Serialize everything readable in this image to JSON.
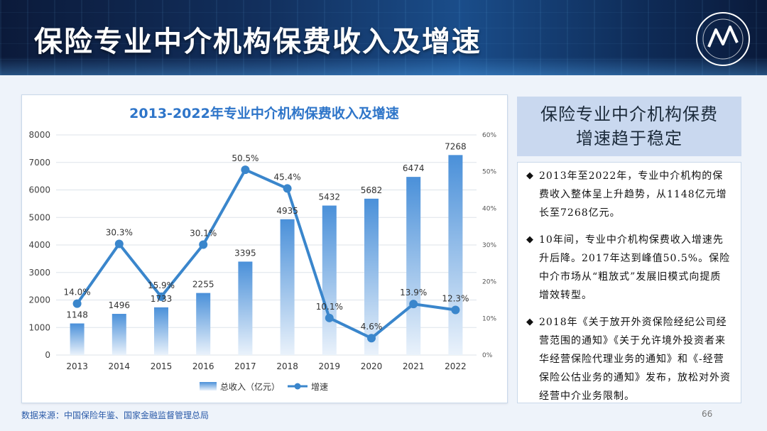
{
  "header": {
    "title": "保险专业中介机构保费收入及增速"
  },
  "chart_data": {
    "type": "bar+line",
    "title": "2013-2022年专业中介机构保费收入及增速",
    "categories": [
      "2013",
      "2014",
      "2015",
      "2016",
      "2017",
      "2018",
      "2019",
      "2020",
      "2021",
      "2022"
    ],
    "series": [
      {
        "name": "总收入（亿元）",
        "type": "bar",
        "axis": "left",
        "values": [
          1148,
          1496,
          1733,
          2255,
          3395,
          4935,
          5432,
          5682,
          6474,
          7268
        ]
      },
      {
        "name": "增速",
        "type": "line",
        "axis": "right",
        "values": [
          14.0,
          30.3,
          15.9,
          30.1,
          50.5,
          45.4,
          10.1,
          4.6,
          13.9,
          12.3
        ]
      }
    ],
    "bar_labels": [
      "1148",
      "1496",
      "1733",
      "2255",
      "3395",
      "4935",
      "5432",
      "5682",
      "6474",
      "7268"
    ],
    "line_labels": [
      "14.0%",
      "30.3%",
      "15.9%",
      "30.1%",
      "50.5%",
      "45.4%",
      "10.1%",
      "4.6%",
      "13.9%",
      "12.3%"
    ],
    "left_ticks": [
      "0",
      "1000",
      "2000",
      "3000",
      "4000",
      "5000",
      "6000",
      "7000",
      "8000"
    ],
    "right_ticks": [
      "0%",
      "10%",
      "20%",
      "30%",
      "40%",
      "50%",
      "60%"
    ],
    "ylim_left": [
      0,
      8000
    ],
    "ylim_right": [
      0,
      60
    ],
    "grid": true,
    "legend_position": "bottom",
    "colors": {
      "bar_top": "#4a90d9",
      "bar_bottom": "#e8f1fb",
      "line": "#3a86cc",
      "title": "#2e75c9"
    }
  },
  "summary": {
    "heading_line1": "保险专业中介机构保费",
    "heading_line2": "增速趋于稳定",
    "bullets": [
      "2013年至2022年，专业中介机构的保费收入整体呈上升趋势，从1148亿元增长至7268亿元。",
      "10年间，专业中介机构保费收入增速先升后降。2017年达到峰值50.5%。保险中介市场从“粗放式”发展旧模式向提质增效转型。",
      "2018年《关于放开外资保险经纪公司经营范围的通知》《关于允许境外投资者来华经营保险代理业务的通知》和《-经营保险公估业务的通知》发布，放松对外资经营中介业务限制。"
    ]
  },
  "footer": {
    "source": "数据来源：中国保险年鉴、国家金融监督管理总局",
    "page_number": "66"
  }
}
